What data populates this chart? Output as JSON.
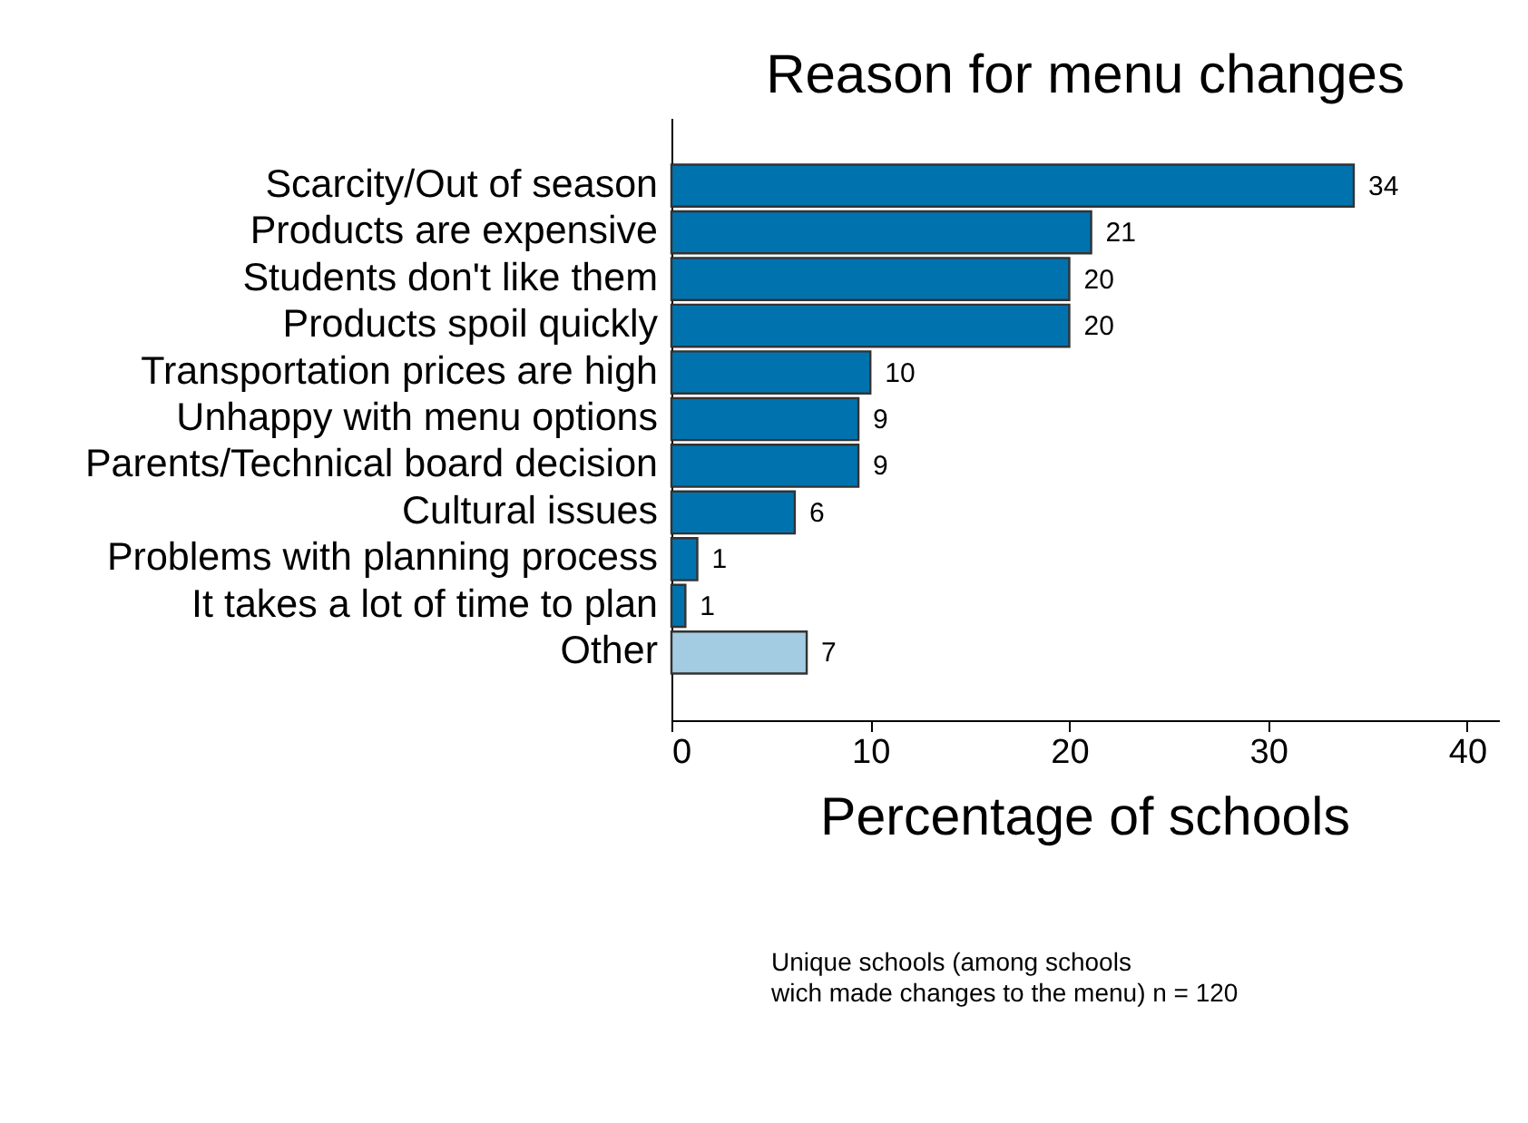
{
  "chart_data": {
    "type": "bar",
    "orientation": "horizontal",
    "title": "Reason for menu changes",
    "xlabel": "Percentage of schools",
    "categories": [
      "Scarcity/Out of season",
      "Products are expensive",
      "Students don't like them",
      "Products spoil quickly",
      "Transportation prices are high",
      "Unhappy with menu options",
      "Parents/Technical board decision",
      "Cultural issues",
      "Problems with planning process",
      "It takes a lot of time to plan",
      "Other"
    ],
    "values": [
      34.3,
      21.1,
      20.0,
      20.0,
      10.0,
      9.4,
      9.4,
      6.2,
      1.3,
      0.7,
      6.8
    ],
    "value_labels": [
      "34",
      "21",
      "20",
      "20",
      "10",
      "9",
      "9",
      "6",
      "1",
      "1",
      "7"
    ],
    "colors": [
      "#0073ae",
      "#0073ae",
      "#0073ae",
      "#0073ae",
      "#0073ae",
      "#0073ae",
      "#0073ae",
      "#0073ae",
      "#0073ae",
      "#0073ae",
      "#a3cce2"
    ],
    "xlim": [
      0,
      41.6
    ],
    "xticks": [
      0,
      10,
      20,
      30,
      40
    ],
    "grid": false,
    "annotations": [
      "Unique schools (among schools\nwich made changes to the menu) n = 120"
    ]
  }
}
